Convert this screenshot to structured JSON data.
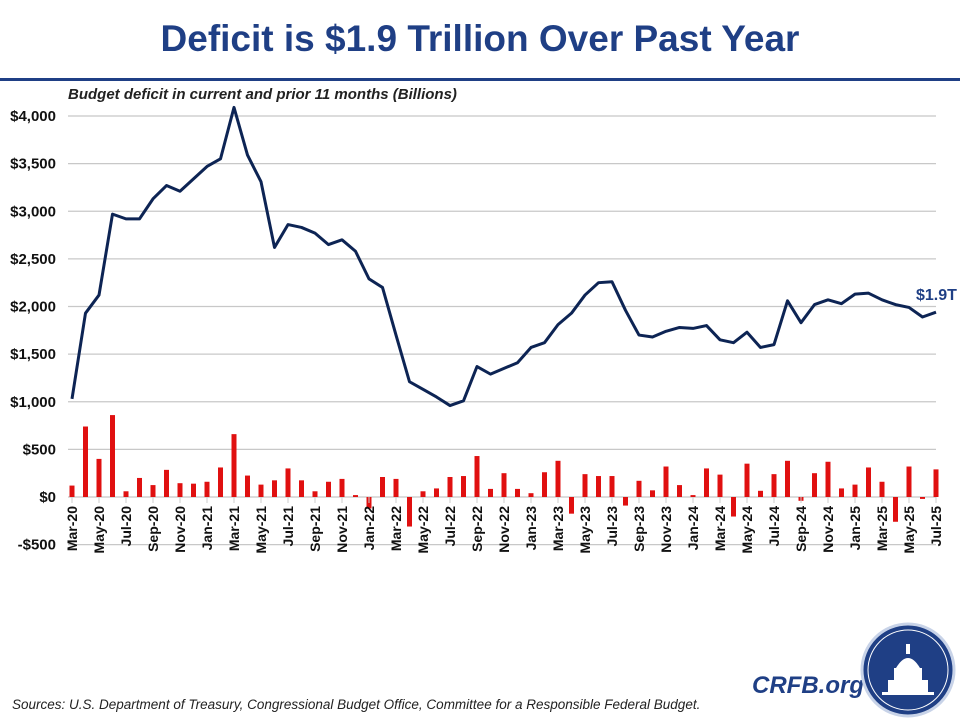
{
  "title": "Deficit is $1.9 Trillion Over Past Year",
  "chart_data": {
    "type": "line+bar",
    "subtitle": "Budget deficit in current and prior 11 months (Billions)",
    "ylim": [
      -500,
      4000
    ],
    "yticks": [
      -500,
      0,
      500,
      1000,
      1500,
      2000,
      2500,
      3000,
      3500,
      4000
    ],
    "ytick_labels": [
      "-$500",
      "$0",
      "$500",
      "$1,000",
      "$1,500",
      "$2,000",
      "$2,500",
      "$3,000",
      "$3,500",
      "$4,000"
    ],
    "grid": true,
    "categories": [
      "Mar-20",
      "Apr-20",
      "May-20",
      "Jun-20",
      "Jul-20",
      "Aug-20",
      "Sep-20",
      "Oct-20",
      "Nov-20",
      "Dec-20",
      "Jan-21",
      "Feb-21",
      "Mar-21",
      "Apr-21",
      "May-21",
      "Jun-21",
      "Jul-21",
      "Aug-21",
      "Sep-21",
      "Oct-21",
      "Nov-21",
      "Dec-21",
      "Jan-22",
      "Feb-22",
      "Mar-22",
      "Apr-22",
      "May-22",
      "Jun-22",
      "Jul-22",
      "Aug-22",
      "Sep-22",
      "Oct-22",
      "Nov-22",
      "Dec-22",
      "Jan-23",
      "Feb-23",
      "Mar-23",
      "Apr-23",
      "May-23",
      "Jun-23",
      "Jul-23",
      "Aug-23",
      "Sep-23",
      "Oct-23",
      "Nov-23",
      "Dec-23",
      "Jan-24",
      "Feb-24",
      "Mar-24",
      "Apr-24",
      "May-24",
      "Jun-24",
      "Jul-24",
      "Aug-24",
      "Sep-24",
      "Oct-24",
      "Nov-24",
      "Dec-24",
      "Jan-25",
      "Feb-25",
      "Mar-25",
      "Apr-25",
      "May-25",
      "Jun-25",
      "Jul-25"
    ],
    "xtick_labels": [
      "Mar-20",
      "May-20",
      "Jul-20",
      "Sep-20",
      "Nov-20",
      "Jan-21",
      "Mar-21",
      "May-21",
      "Jul-21",
      "Sep-21",
      "Nov-21",
      "Jan-22",
      "Mar-22",
      "May-22",
      "Jul-22",
      "Sep-22",
      "Nov-22",
      "Jan-23",
      "Mar-23",
      "May-23",
      "Jul-23",
      "Sep-23",
      "Nov-23",
      "Jan-24",
      "Mar-24",
      "May-24",
      "Jul-24",
      "Sep-24",
      "Nov-24",
      "Jan-25",
      "Mar-25",
      "May-25",
      "Jul-25"
    ],
    "series": [
      {
        "type": "line",
        "color": "#0d2454",
        "values": [
          1030,
          1930,
          2120,
          2970,
          2920,
          2920,
          3130,
          3270,
          3210,
          3340,
          3470,
          3550,
          4090,
          3590,
          3310,
          2620,
          2860,
          2830,
          2770,
          2650,
          2700,
          2580,
          2290,
          2200,
          1700,
          1210,
          1130,
          1050,
          960,
          1010,
          1370,
          1290,
          1350,
          1410,
          1570,
          1620,
          1810,
          1930,
          2120,
          2250,
          2260,
          1960,
          1700,
          1680,
          1740,
          1780,
          1770,
          1800,
          1650,
          1620,
          1730,
          1570,
          1600,
          2060,
          1830,
          2020,
          2070,
          2030,
          2130,
          2140,
          2070,
          2020,
          1990,
          1890,
          1940
        ]
      },
      {
        "type": "bar",
        "color": "#e01010",
        "values": [
          120,
          740,
          400,
          860,
          60,
          200,
          125,
          285,
          145,
          140,
          160,
          310,
          660,
          225,
          130,
          175,
          300,
          175,
          60,
          160,
          190,
          20,
          -120,
          210,
          190,
          -310,
          60,
          90,
          210,
          220,
          430,
          85,
          250,
          85,
          40,
          260,
          380,
          -175,
          240,
          220,
          220,
          -90,
          170,
          70,
          320,
          125,
          20,
          300,
          235,
          -205,
          350,
          65,
          240,
          380,
          -40,
          250,
          370,
          90,
          130,
          310,
          160,
          -260,
          320,
          -20,
          290
        ]
      }
    ],
    "annotation": "$1.9T"
  },
  "sources": "Sources: U.S. Department of Treasury, Congressional Budget Office, Committee for a Responsible Federal Budget.",
  "brand": "CRFB.org"
}
